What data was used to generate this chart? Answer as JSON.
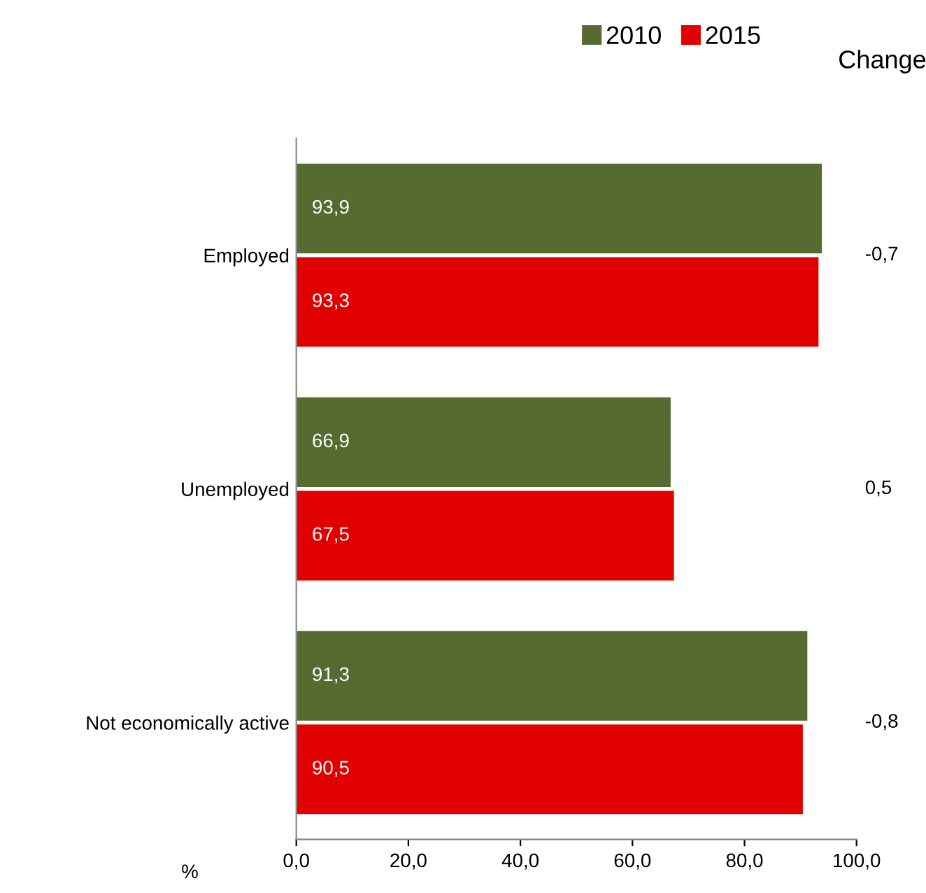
{
  "chart_data": {
    "type": "bar",
    "orientation": "horizontal",
    "categories": [
      "Employed",
      "Unemployed",
      "Not economically active"
    ],
    "series": [
      {
        "name": "2010",
        "color": "#556b2f",
        "values": [
          93.9,
          66.9,
          91.3
        ],
        "value_labels": [
          "93,9",
          "66,9",
          "91,3"
        ]
      },
      {
        "name": "2015",
        "color": "#e00000",
        "values": [
          93.3,
          67.5,
          90.5
        ],
        "value_labels": [
          "93,3",
          "67,5",
          "90,5"
        ]
      }
    ],
    "xlabel": "%",
    "xlim": [
      0,
      100
    ],
    "xticks": [
      {
        "value": 0,
        "label": "0,0"
      },
      {
        "value": 20,
        "label": "20,0"
      },
      {
        "value": 40,
        "label": "40,0"
      },
      {
        "value": 60,
        "label": "60,0"
      },
      {
        "value": 80,
        "label": "80,0"
      },
      {
        "value": 100,
        "label": "100,0"
      }
    ],
    "annotations": [
      "Change",
      "-0,7",
      "0,5",
      "-0,8"
    ],
    "legend": "top right",
    "grid": false
  }
}
